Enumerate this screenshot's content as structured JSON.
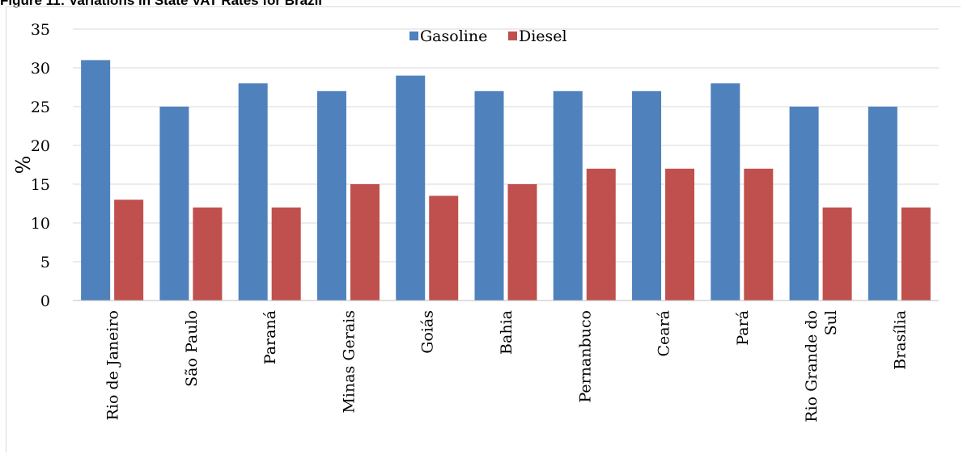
{
  "figure_title": "Figure 11: Variations in State VAT Rates for Brazil",
  "chart_data": {
    "type": "bar",
    "title": "",
    "xlabel": "",
    "ylabel": "%",
    "ylim": [
      0,
      35
    ],
    "yticks": [
      0,
      5,
      10,
      15,
      20,
      25,
      30,
      35
    ],
    "grid": true,
    "legend_position": "top-center",
    "categories": [
      "Rio de Janeiro",
      "São Paulo",
      "Paraná",
      "Minas Gerais",
      "Goiás",
      "Bahia",
      "Pernanbuco",
      "Ceará",
      "Pará",
      "Rio Grande do Sul",
      "Brasília"
    ],
    "series": [
      {
        "name": "Gasoline",
        "color": "#4f81bd",
        "values": [
          31,
          25,
          28,
          27,
          29,
          27,
          27,
          27,
          28,
          25,
          25
        ]
      },
      {
        "name": "Diesel",
        "color": "#c0504d",
        "values": [
          13,
          12,
          12,
          15,
          13.5,
          15,
          17,
          17,
          17,
          12,
          12
        ]
      }
    ]
  }
}
